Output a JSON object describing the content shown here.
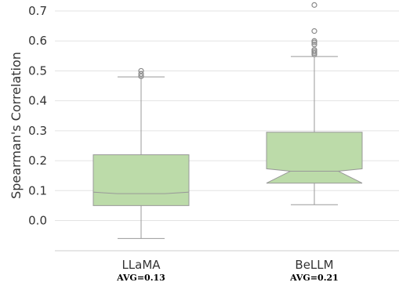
{
  "chart_data": {
    "type": "boxplot",
    "ylabel": "Spearman's Correlation",
    "ylim": [
      -0.1,
      0.72
    ],
    "yticks": [
      0.0,
      0.1,
      0.2,
      0.3,
      0.4,
      0.5,
      0.6,
      0.7
    ],
    "ytick_labels": [
      "0.0",
      "0.1",
      "0.2",
      "0.3",
      "0.4",
      "0.5",
      "0.6",
      "0.7"
    ],
    "grid": "horizontal",
    "notched": true,
    "box_color": "#bcdba9",
    "edge_color": "#999999",
    "categories": [
      "LLaMA",
      "BeLLM"
    ],
    "annotations": [
      "AVG=0.13",
      "AVG=0.21"
    ],
    "boxes": [
      {
        "name": "LLaMA",
        "whisker_low": -0.06,
        "q1": 0.05,
        "median": 0.09,
        "q3": 0.22,
        "whisker_high": 0.48,
        "notch_low": 0.095,
        "notch_high": 0.095,
        "outliers": [
          0.482,
          0.49,
          0.5
        ]
      },
      {
        "name": "BeLLM",
        "whisker_low": 0.053,
        "q1": 0.125,
        "median": 0.165,
        "q3": 0.295,
        "whisker_high": 0.548,
        "notch_low": 0.125,
        "notch_high": 0.173,
        "outliers": [
          0.555,
          0.56,
          0.565,
          0.57,
          0.588,
          0.595,
          0.6,
          0.633,
          0.72
        ]
      }
    ]
  }
}
